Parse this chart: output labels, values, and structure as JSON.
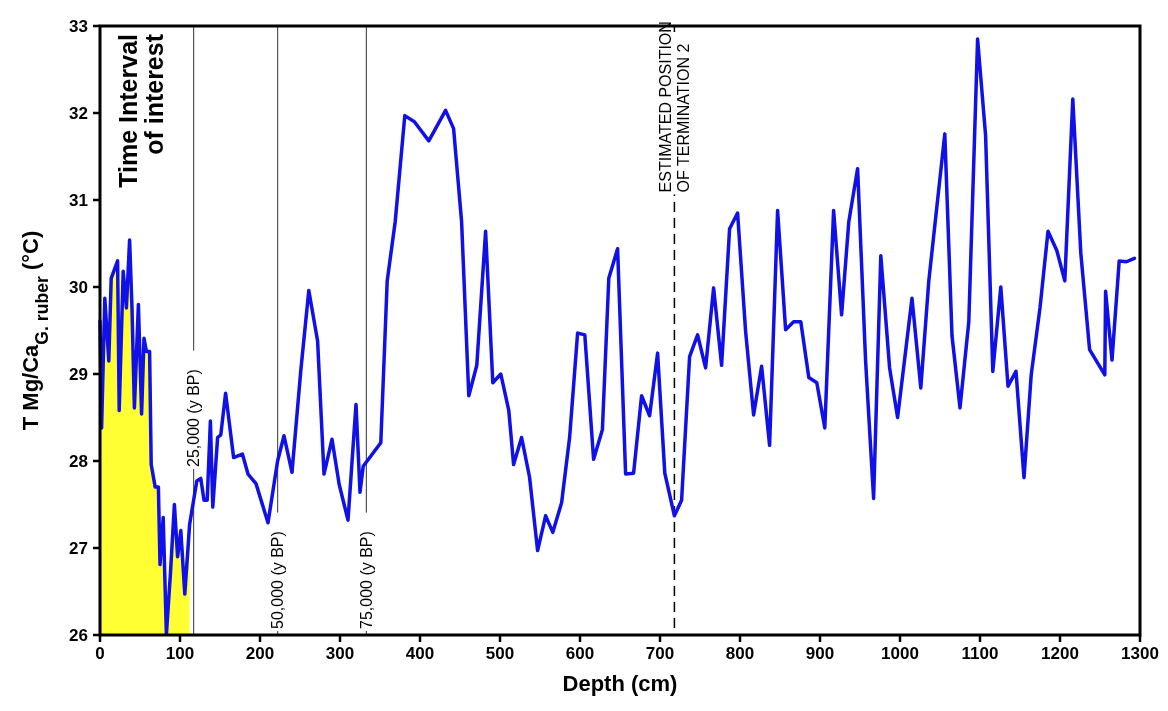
{
  "chart_data": {
    "type": "line",
    "xlabel": "Depth (cm)",
    "ylabel": "T Mg/Ca$_{G. ruber}$ (°C)",
    "xlim": [
      0,
      1300
    ],
    "xticks": [
      0,
      100,
      200,
      300,
      400,
      500,
      600,
      700,
      800,
      900,
      1000,
      1100,
      1200,
      1300
    ],
    "ylim": [
      26,
      33
    ],
    "yticks": [
      26,
      27,
      28,
      29,
      30,
      31,
      32,
      33
    ],
    "grid": false,
    "marker": "none",
    "line_style": "solid",
    "annotations": [
      "Time Interval\nof interest"
    ],
    "ref_lines": [
      {
        "axis": "x",
        "value": 117,
        "label": "25,000 (y BP)",
        "color": "#555555",
        "line_style": "solid"
      },
      {
        "axis": "x",
        "value": 222,
        "label": "50,000 (y BP)",
        "color": "#555555",
        "line_style": "solid"
      },
      {
        "axis": "x",
        "value": 333,
        "label": "75,000 (y BP)",
        "color": "#555555",
        "line_style": "solid"
      },
      {
        "axis": "x",
        "value": 718,
        "label": "ESTIMATED POSITION\nOF TERMINATION 2",
        "color": "#000000",
        "line_style": "dashed"
      }
    ],
    "series": [
      {
        "type": "area",
        "color": "#ffff33",
        "x": [
          0,
          2,
          6,
          11,
          14,
          22,
          24,
          29,
          33,
          37,
          40,
          43,
          48,
          52,
          55,
          58,
          62,
          64,
          69,
          73,
          75,
          79,
          83,
          88,
          93,
          97,
          101,
          106,
          112
        ],
        "values": [
          29.61,
          28.38,
          29.87,
          29.15,
          30.1,
          30.3,
          28.58,
          30.18,
          29.76,
          30.54,
          29.76,
          28.61,
          29.8,
          28.54,
          29.41,
          29.26,
          29.26,
          27.96,
          27.7,
          27.7,
          26.81,
          27.35,
          26.01,
          26.7,
          27.5,
          26.9,
          27.2,
          26.47,
          27.27
        ]
      },
      {
        "color": "#1010e8",
        "x": [
          0,
          2,
          6,
          11,
          14,
          22,
          24,
          29,
          33,
          37,
          40,
          43,
          48,
          52,
          55,
          58,
          62,
          64,
          69,
          73,
          75,
          79,
          83,
          88,
          93,
          97,
          101,
          106,
          112,
          121,
          126,
          130,
          134,
          138,
          141,
          147,
          151,
          157,
          167,
          178,
          185,
          195,
          210,
          222,
          230,
          240,
          251,
          261,
          272,
          280,
          290,
          299,
          310,
          320,
          325,
          329,
          351,
          359,
          369,
          381,
          393,
          411,
          432,
          442,
          452,
          461,
          471,
          482,
          491,
          501,
          511,
          517,
          527,
          537,
          547,
          557,
          566,
          577,
          587,
          597,
          606,
          617,
          628,
          636,
          647,
          657,
          667,
          677,
          687,
          697,
          706,
          718,
          727,
          737,
          747,
          757,
          767,
          777,
          787,
          797,
          807,
          817,
          827,
          837,
          847,
          857,
          867,
          876,
          886,
          896,
          906,
          917,
          927,
          936,
          947,
          957,
          967,
          976,
          987,
          997,
          1015,
          1026,
          1036,
          1056,
          1065,
          1075,
          1086,
          1097,
          1107,
          1116,
          1126,
          1135,
          1145,
          1155,
          1164,
          1175,
          1185,
          1196,
          1206,
          1216,
          1226,
          1237,
          1256,
          1257,
          1265,
          1274,
          1283,
          1293
        ],
        "values": [
          29.61,
          28.38,
          29.87,
          29.15,
          30.1,
          30.3,
          28.58,
          30.18,
          29.76,
          30.54,
          29.76,
          28.61,
          29.8,
          28.54,
          29.41,
          29.26,
          29.26,
          27.96,
          27.7,
          27.7,
          26.81,
          27.35,
          26.01,
          26.7,
          27.5,
          26.9,
          27.2,
          26.47,
          27.27,
          27.77,
          27.8,
          27.55,
          27.55,
          28.46,
          27.47,
          28.27,
          28.3,
          28.78,
          28.04,
          28.08,
          27.85,
          27.74,
          27.29,
          28.0,
          28.29,
          27.87,
          29.04,
          29.96,
          29.38,
          27.85,
          28.25,
          27.73,
          27.32,
          28.65,
          27.64,
          27.94,
          28.21,
          30.07,
          30.75,
          31.97,
          31.9,
          31.68,
          32.03,
          31.82,
          30.75,
          28.75,
          29.1,
          30.64,
          28.9,
          29.0,
          28.58,
          27.96,
          28.27,
          27.81,
          26.97,
          27.37,
          27.18,
          27.52,
          28.27,
          29.47,
          29.45,
          28.02,
          28.36,
          30.1,
          30.44,
          27.85,
          27.86,
          28.75,
          28.52,
          29.24,
          27.86,
          27.37,
          27.55,
          29.2,
          29.45,
          29.07,
          29.99,
          29.1,
          30.67,
          30.85,
          29.49,
          28.53,
          29.09,
          28.18,
          30.88,
          29.51,
          29.6,
          29.6,
          28.96,
          28.9,
          28.38,
          30.88,
          29.68,
          30.75,
          31.36,
          29.15,
          27.57,
          30.36,
          29.07,
          28.5,
          29.87,
          28.84,
          30.07,
          31.76,
          29.44,
          28.61,
          29.6,
          32.85,
          31.74,
          29.03,
          30.0,
          28.86,
          29.03,
          27.81,
          28.99,
          29.76,
          30.64,
          30.42,
          30.07,
          32.16,
          30.39,
          29.28,
          28.99,
          29.95,
          29.16,
          30.3,
          30.29,
          30.33
        ]
      }
    ]
  }
}
